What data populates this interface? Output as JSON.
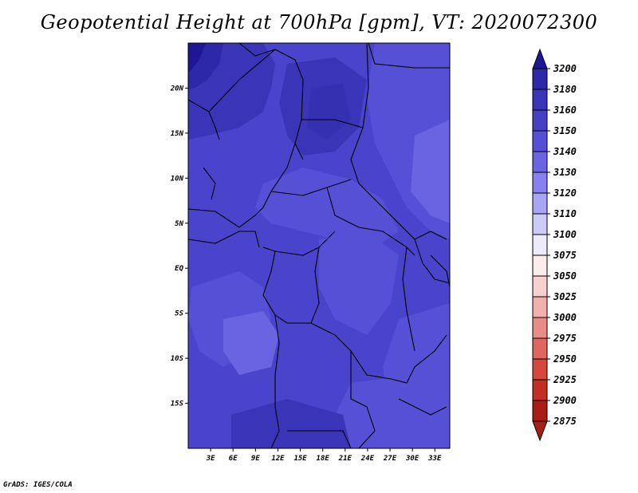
{
  "title": "Geopotential Height at 700hPa [gpm], VT: 2020072300",
  "credit": "GrADS: IGES/COLA",
  "map": {
    "lon_range_deg": [
      0,
      35
    ],
    "lat_range_deg": [
      -20,
      25
    ],
    "lon_tick_labels": [
      "3E",
      "6E",
      "9E",
      "12E",
      "15E",
      "18E",
      "21E",
      "24E",
      "27E",
      "30E",
      "33E"
    ],
    "lat_tick_labels": [
      "20N",
      "15N",
      "10N",
      "5N",
      "EQ",
      "5S",
      "10S",
      "15S"
    ],
    "field": "shaded geopotential height, mostly 3130–3180 gpm",
    "border_color": "#000000"
  },
  "colorbar": {
    "levels": [
      "3200",
      "3180",
      "3160",
      "3150",
      "3140",
      "3130",
      "3120",
      "3110",
      "3100",
      "3075",
      "3050",
      "3025",
      "3000",
      "2975",
      "2950",
      "2925",
      "2900",
      "2875"
    ],
    "colors": [
      "#1e1696",
      "#2d28aa",
      "#3a34b8",
      "#4640c6",
      "#5650d6",
      "#6a64e2",
      "#8880ee",
      "#a8a4f6",
      "#cccaf9",
      "#eceafd",
      "#fdeceb",
      "#f8d0ce",
      "#f2b0ac",
      "#ea8c86",
      "#e0675f",
      "#d44840",
      "#c22e24",
      "#a81e14"
    ]
  }
}
